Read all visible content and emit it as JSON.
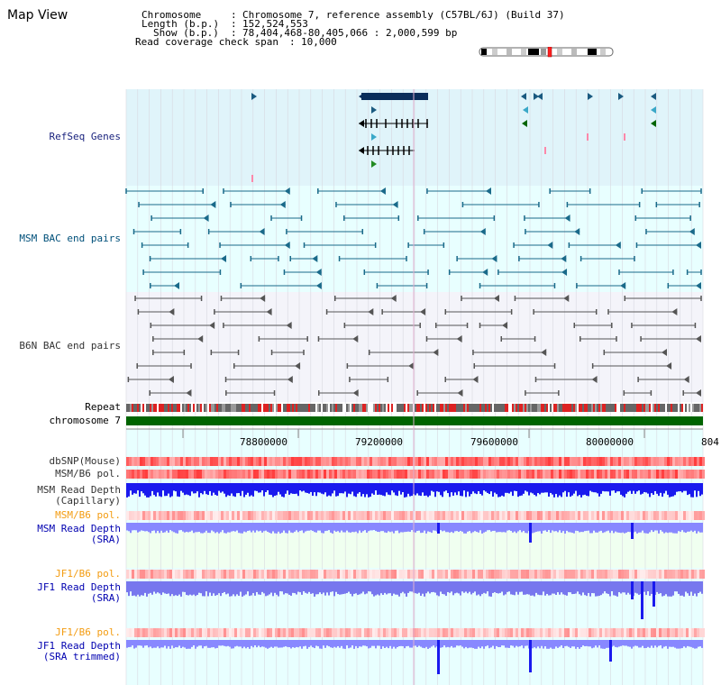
{
  "title": "Map View",
  "header": {
    "chromosome_key": "Chromosome",
    "chromosome_val": "Chromosome 7, reference assembly (C57BL/6J) (Build 37)",
    "length_key": "Length (b.p.)",
    "length_val": "152,524,553",
    "show_key": "Show (b.p.)",
    "show_val": "78,404,468-80,405,066 : 2,000,599 bp",
    "span_key": "Read coverage check span",
    "span_val": "10,000"
  },
  "tracks": {
    "refseq": "RefSeq Genes",
    "msm_bac": "MSM BAC end pairs",
    "b6n_bac": "B6N BAC end pairs",
    "repeat": "Repeat",
    "chromosome": "chromosome 7",
    "dbsnp": "dbSNP(Mouse)",
    "msm_b6_pol": "MSM/B6 pol.",
    "msm_depth_cap_1": "MSM Read Depth",
    "msm_depth_cap_2": "(Capillary)",
    "msm_b6_pol_2": "MSM/B6 pol.",
    "msm_depth_sra_1": "MSM Read Depth",
    "msm_depth_sra_2": "(SRA)",
    "jf1_b6_pol": "JF1/B6 pol.",
    "jf1_depth_sra_1": "JF1 Read Depth",
    "jf1_depth_sra_2": "(SRA)",
    "jf1_b6_pol_2": "JF1/B6 pol.",
    "jf1_depth_trim_1": "JF1 Read Depth",
    "jf1_depth_trim_2": "(SRA trimmed)"
  },
  "axis": {
    "ticks": [
      "78800000",
      "79200000",
      "79600000",
      "80000000",
      "804"
    ]
  },
  "colors": {
    "refseq_bg": "#e0f4fa",
    "bac_bg": "#e8ffff",
    "b6n_bg": "#f4f4fa",
    "chromosome": "#006400",
    "depth_blue": "#1a1aee",
    "depth_light": "#8888ff",
    "pol_red": "#ff5050"
  }
}
